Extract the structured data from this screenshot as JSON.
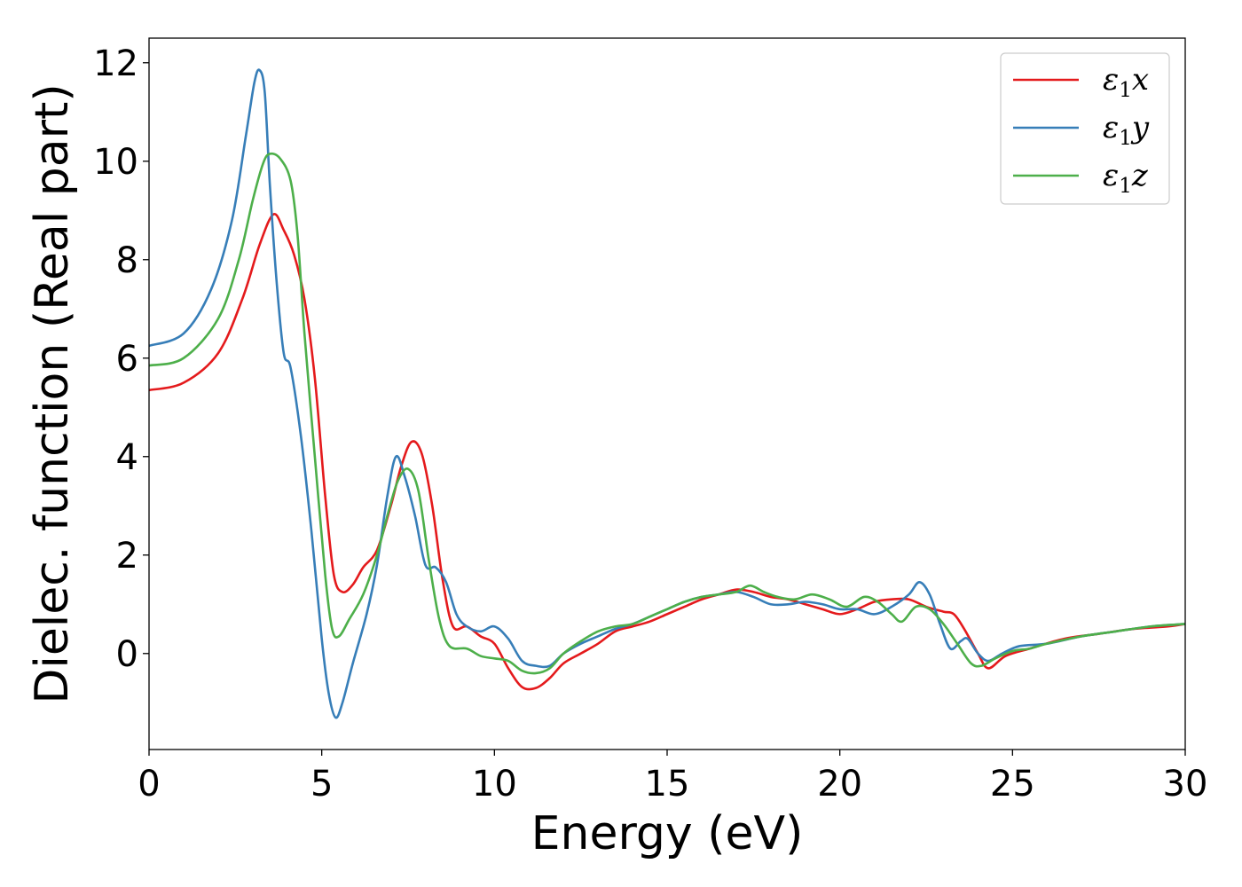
{
  "chart_data": {
    "type": "line",
    "xlabel": "Energy (eV)",
    "ylabel": "Dielec. function (Real part)",
    "xlim": [
      0,
      30
    ],
    "ylim": [
      -1.95,
      12.5
    ],
    "xticks": [
      0,
      5,
      10,
      15,
      20,
      25,
      30
    ],
    "yticks": [
      0,
      2,
      4,
      6,
      8,
      10,
      12
    ],
    "grid": false,
    "legend_position": "top-right",
    "series": [
      {
        "name": "ε₁x",
        "legend_base": "ε",
        "legend_sub": "1",
        "legend_var": "x",
        "color": "#e41a1c",
        "points": [
          [
            0,
            5.35
          ],
          [
            1,
            5.5
          ],
          [
            2,
            6.1
          ],
          [
            2.7,
            7.2
          ],
          [
            3.2,
            8.3
          ],
          [
            3.6,
            8.92
          ],
          [
            3.9,
            8.6
          ],
          [
            4.2,
            8.1
          ],
          [
            4.5,
            7.2
          ],
          [
            4.8,
            5.6
          ],
          [
            5.1,
            3.2
          ],
          [
            5.35,
            1.6
          ],
          [
            5.6,
            1.25
          ],
          [
            5.9,
            1.4
          ],
          [
            6.2,
            1.75
          ],
          [
            6.6,
            2.1
          ],
          [
            7,
            3.0
          ],
          [
            7.3,
            3.8
          ],
          [
            7.6,
            4.3
          ],
          [
            7.9,
            4.05
          ],
          [
            8.2,
            3.0
          ],
          [
            8.5,
            1.5
          ],
          [
            8.8,
            0.55
          ],
          [
            9.2,
            0.55
          ],
          [
            9.6,
            0.35
          ],
          [
            10,
            0.2
          ],
          [
            10.4,
            -0.3
          ],
          [
            10.8,
            -0.68
          ],
          [
            11.2,
            -0.7
          ],
          [
            11.6,
            -0.5
          ],
          [
            12,
            -0.2
          ],
          [
            12.5,
            0
          ],
          [
            13,
            0.2
          ],
          [
            13.5,
            0.45
          ],
          [
            14,
            0.55
          ],
          [
            14.5,
            0.65
          ],
          [
            15,
            0.8
          ],
          [
            15.5,
            0.95
          ],
          [
            16,
            1.1
          ],
          [
            16.5,
            1.2
          ],
          [
            17,
            1.3
          ],
          [
            17.5,
            1.25
          ],
          [
            18,
            1.15
          ],
          [
            18.5,
            1.1
          ],
          [
            19,
            1.0
          ],
          [
            19.5,
            0.9
          ],
          [
            20,
            0.8
          ],
          [
            20.5,
            0.9
          ],
          [
            21,
            1.05
          ],
          [
            21.5,
            1.1
          ],
          [
            22,
            1.1
          ],
          [
            22.5,
            0.95
          ],
          [
            23,
            0.85
          ],
          [
            23.3,
            0.8
          ],
          [
            23.6,
            0.5
          ],
          [
            24,
            0.0
          ],
          [
            24.3,
            -0.3
          ],
          [
            24.8,
            -0.05
          ],
          [
            25.5,
            0.1
          ],
          [
            26.5,
            0.3
          ],
          [
            27.5,
            0.4
          ],
          [
            28.5,
            0.5
          ],
          [
            29.5,
            0.55
          ],
          [
            30,
            0.6
          ]
        ]
      },
      {
        "name": "ε₁y",
        "legend_base": "ε",
        "legend_sub": "1",
        "legend_var": "y",
        "color": "#377eb8",
        "points": [
          [
            0,
            6.25
          ],
          [
            1,
            6.5
          ],
          [
            1.8,
            7.4
          ],
          [
            2.4,
            8.8
          ],
          [
            2.8,
            10.5
          ],
          [
            3.05,
            11.6
          ],
          [
            3.2,
            11.85
          ],
          [
            3.35,
            11.4
          ],
          [
            3.5,
            9.5
          ],
          [
            3.7,
            7.5
          ],
          [
            3.9,
            6.1
          ],
          [
            4.1,
            5.8
          ],
          [
            4.4,
            4.4
          ],
          [
            4.7,
            2.5
          ],
          [
            5.0,
            0.3
          ],
          [
            5.2,
            -0.8
          ],
          [
            5.4,
            -1.3
          ],
          [
            5.6,
            -1.0
          ],
          [
            5.9,
            -0.2
          ],
          [
            6.3,
            0.8
          ],
          [
            6.6,
            1.8
          ],
          [
            6.9,
            3.2
          ],
          [
            7.15,
            4.0
          ],
          [
            7.4,
            3.6
          ],
          [
            7.7,
            2.8
          ],
          [
            8.0,
            1.8
          ],
          [
            8.3,
            1.75
          ],
          [
            8.6,
            1.45
          ],
          [
            8.9,
            0.8
          ],
          [
            9.2,
            0.55
          ],
          [
            9.6,
            0.45
          ],
          [
            10,
            0.55
          ],
          [
            10.4,
            0.3
          ],
          [
            10.8,
            -0.15
          ],
          [
            11.2,
            -0.25
          ],
          [
            11.6,
            -0.25
          ],
          [
            12,
            0
          ],
          [
            12.5,
            0.2
          ],
          [
            13,
            0.35
          ],
          [
            13.5,
            0.5
          ],
          [
            14,
            0.6
          ],
          [
            14.5,
            0.75
          ],
          [
            15,
            0.9
          ],
          [
            15.5,
            1.05
          ],
          [
            16,
            1.15
          ],
          [
            16.5,
            1.2
          ],
          [
            17,
            1.25
          ],
          [
            17.5,
            1.15
          ],
          [
            18,
            1.0
          ],
          [
            18.5,
            1.0
          ],
          [
            19,
            1.05
          ],
          [
            19.5,
            1.0
          ],
          [
            20,
            0.9
          ],
          [
            20.5,
            0.9
          ],
          [
            21,
            0.8
          ],
          [
            21.5,
            0.95
          ],
          [
            22,
            1.2
          ],
          [
            22.3,
            1.45
          ],
          [
            22.6,
            1.2
          ],
          [
            22.9,
            0.6
          ],
          [
            23.2,
            0.1
          ],
          [
            23.5,
            0.25
          ],
          [
            23.7,
            0.3
          ],
          [
            24,
            0.0
          ],
          [
            24.3,
            -0.15
          ],
          [
            24.7,
            0.0
          ],
          [
            25.2,
            0.15
          ],
          [
            26,
            0.2
          ],
          [
            27,
            0.35
          ],
          [
            28,
            0.45
          ],
          [
            29,
            0.55
          ],
          [
            30,
            0.6
          ]
        ]
      },
      {
        "name": "ε₁z",
        "legend_base": "ε",
        "legend_sub": "1",
        "legend_var": "z",
        "color": "#4daf4a",
        "points": [
          [
            0,
            5.85
          ],
          [
            1,
            6.0
          ],
          [
            2,
            6.8
          ],
          [
            2.6,
            8.0
          ],
          [
            3.0,
            9.2
          ],
          [
            3.3,
            9.95
          ],
          [
            3.5,
            10.15
          ],
          [
            3.8,
            10.05
          ],
          [
            4.1,
            9.6
          ],
          [
            4.3,
            8.5
          ],
          [
            4.5,
            6.5
          ],
          [
            4.8,
            4.0
          ],
          [
            5.1,
            1.6
          ],
          [
            5.3,
            0.5
          ],
          [
            5.5,
            0.35
          ],
          [
            5.8,
            0.7
          ],
          [
            6.2,
            1.2
          ],
          [
            6.6,
            2.0
          ],
          [
            6.9,
            2.8
          ],
          [
            7.2,
            3.5
          ],
          [
            7.5,
            3.75
          ],
          [
            7.8,
            3.3
          ],
          [
            8.1,
            1.9
          ],
          [
            8.4,
            0.7
          ],
          [
            8.7,
            0.15
          ],
          [
            9.2,
            0.1
          ],
          [
            9.6,
            -0.05
          ],
          [
            10,
            -0.1
          ],
          [
            10.4,
            -0.15
          ],
          [
            10.8,
            -0.35
          ],
          [
            11.2,
            -0.4
          ],
          [
            11.6,
            -0.3
          ],
          [
            12,
            0
          ],
          [
            12.5,
            0.25
          ],
          [
            13,
            0.45
          ],
          [
            13.5,
            0.55
          ],
          [
            14,
            0.6
          ],
          [
            14.5,
            0.75
          ],
          [
            15,
            0.9
          ],
          [
            15.5,
            1.05
          ],
          [
            16,
            1.15
          ],
          [
            16.5,
            1.2
          ],
          [
            17,
            1.25
          ],
          [
            17.4,
            1.38
          ],
          [
            17.8,
            1.25
          ],
          [
            18.2,
            1.15
          ],
          [
            18.7,
            1.1
          ],
          [
            19.2,
            1.2
          ],
          [
            19.7,
            1.1
          ],
          [
            20.2,
            0.95
          ],
          [
            20.7,
            1.15
          ],
          [
            21.1,
            1.05
          ],
          [
            21.5,
            0.8
          ],
          [
            21.8,
            0.65
          ],
          [
            22.2,
            0.95
          ],
          [
            22.6,
            0.9
          ],
          [
            23.0,
            0.6
          ],
          [
            23.4,
            0.2
          ],
          [
            23.8,
            -0.2
          ],
          [
            24.1,
            -0.25
          ],
          [
            24.5,
            -0.1
          ],
          [
            25,
            0.05
          ],
          [
            25.5,
            0.1
          ],
          [
            26,
            0.2
          ],
          [
            27,
            0.35
          ],
          [
            28,
            0.45
          ],
          [
            29,
            0.55
          ],
          [
            30,
            0.6
          ]
        ]
      }
    ]
  }
}
